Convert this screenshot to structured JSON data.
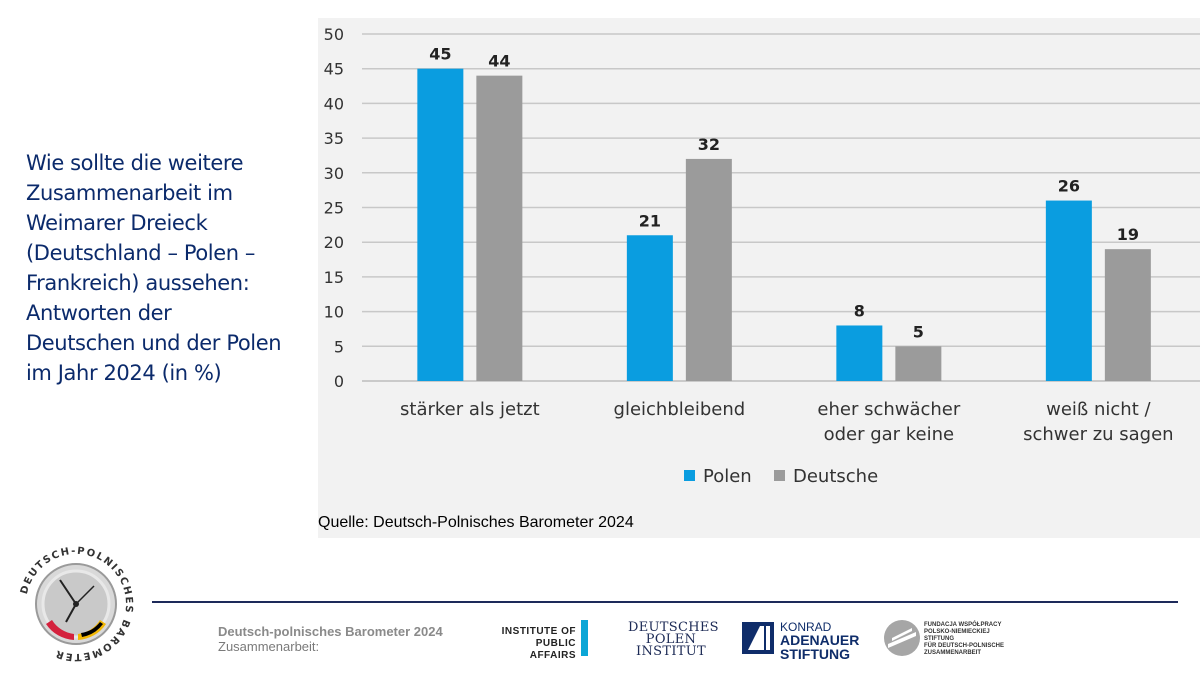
{
  "title": {
    "line1": "Wie sollte die weitere",
    "line2": "Zusammenarbeit im",
    "line3": "Weimarer Dreieck",
    "line4": "(Deutschland – Polen –",
    "line5": "Frankreich) aussehen:",
    "line6": "Antworten der",
    "line7": "Deutschen und der Polen",
    "line8": "im Jahr 2024 (in %)"
  },
  "source": "Quelle: Deutsch-Polnisches Barometer 2024",
  "footer": {
    "title": "Deutsch-polnisches Barometer 2024",
    "subtitle": "Zusammenarbeit:"
  },
  "logos": {
    "emblem": "DEUTSCH-POLNISCHES BAROMETER",
    "ipa_line1": "INSTITUTE OF",
    "ipa_line2": "PUBLIC AFFAIRS",
    "dpi_line1": "DEUTSCHES",
    "dpi_line2": "POLEN",
    "dpi_line3": "INSTITUT",
    "kas_line1": "KONRAD",
    "kas_line2": "ADENAUER",
    "kas_line3": "STIFTUNG",
    "fwpn_line1": "FUNDACJA WSPÓŁPRACY",
    "fwpn_line2": "POLSKO-NIEMIECKIEJ",
    "fwpn_line3": "STIFTUNG",
    "fwpn_line4": "FÜR DEUTSCH-POLNISCHE",
    "fwpn_line5": "ZUSAMMENARBEIT"
  },
  "colors": {
    "polen": "#0a9de0",
    "deutsche": "#9b9b9b",
    "title": "#0b2a6b"
  },
  "chart_data": {
    "type": "bar",
    "categories": [
      [
        "stärker als jetzt"
      ],
      [
        "gleichbleibend"
      ],
      [
        "eher schwächer",
        "oder gar keine"
      ],
      [
        "weiß nicht /",
        "schwer zu sagen"
      ]
    ],
    "series": [
      {
        "name": "Polen",
        "values": [
          45,
          21,
          8,
          26
        ]
      },
      {
        "name": "Deutsche",
        "values": [
          44,
          32,
          5,
          19
        ]
      }
    ],
    "ylim": [
      0,
      50
    ],
    "yticks": [
      0,
      5,
      10,
      15,
      20,
      25,
      30,
      35,
      40,
      45,
      50
    ],
    "grid": true,
    "legend": "bottom-center",
    "title": "",
    "xlabel": "",
    "ylabel": ""
  }
}
